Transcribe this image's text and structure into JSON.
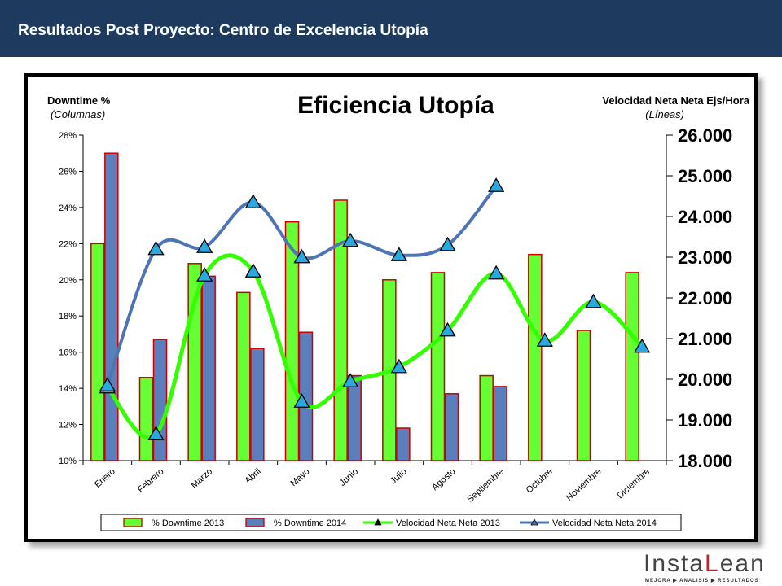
{
  "header": {
    "title": "Resultados Post Proyecto: Centro de Excelencia Utopía"
  },
  "brand": {
    "name_part1": "Insta",
    "name_part2": "L",
    "name_part3": "ean",
    "tagline": "MEJORA ▶ ANALISIS ▶ RESULTADOS"
  },
  "colors": {
    "header_bg": "#1f3a5f",
    "bar_2013": "#66ff33",
    "bar_2014": "#5b7fbd",
    "bar_border": "#cc0000",
    "line_2013": "#33ff00",
    "line_2014": "#4f74b3",
    "marker": "#29a9e0"
  },
  "chart_data": {
    "type": "bar",
    "title": "Eficiencia Utopía",
    "left_axis_label": "Downtime %",
    "left_axis_sublabel": "(Columnas)",
    "right_axis_label": "Velocidad Neta Neta Ejs/Hora",
    "right_axis_sublabel": "(Líneas)",
    "categories": [
      "Enero",
      "Febrero",
      "Marzo",
      "Abril",
      "Mayo",
      "Junio",
      "Julio",
      "Agosto",
      "Septiembre",
      "Octubre",
      "Noviembre",
      "Diciembre"
    ],
    "ylim_left": [
      10,
      28
    ],
    "yticks_left": [
      "10%",
      "12%",
      "14%",
      "16%",
      "18%",
      "20%",
      "22%",
      "24%",
      "26%",
      "28%"
    ],
    "ylim_right": [
      18000,
      26000
    ],
    "yticks_right": [
      "18.000",
      "19.000",
      "20.000",
      "21.000",
      "22.000",
      "23.000",
      "24.000",
      "25.000",
      "26.000"
    ],
    "bar_series": [
      {
        "name": "% Downtime  2013",
        "values": [
          22.0,
          14.6,
          20.9,
          19.3,
          23.2,
          24.4,
          20.0,
          20.4,
          14.7,
          21.4,
          17.2,
          20.4
        ]
      },
      {
        "name": "% Downtime  2014",
        "values": [
          27.0,
          16.7,
          20.2,
          16.2,
          17.1,
          14.7,
          11.8,
          13.7,
          14.1,
          null,
          null,
          null
        ]
      }
    ],
    "line_series": [
      {
        "name": "Velocidad Neta Neta 2013",
        "values": [
          19800,
          18650,
          22550,
          22650,
          19450,
          19950,
          20300,
          21200,
          22600,
          20950,
          21900,
          20800
        ]
      },
      {
        "name": "Velocidad Neta Neta 2014",
        "values": [
          19850,
          23200,
          23250,
          24350,
          23000,
          23400,
          23050,
          23300,
          24750,
          null,
          null,
          null
        ]
      }
    ]
  }
}
